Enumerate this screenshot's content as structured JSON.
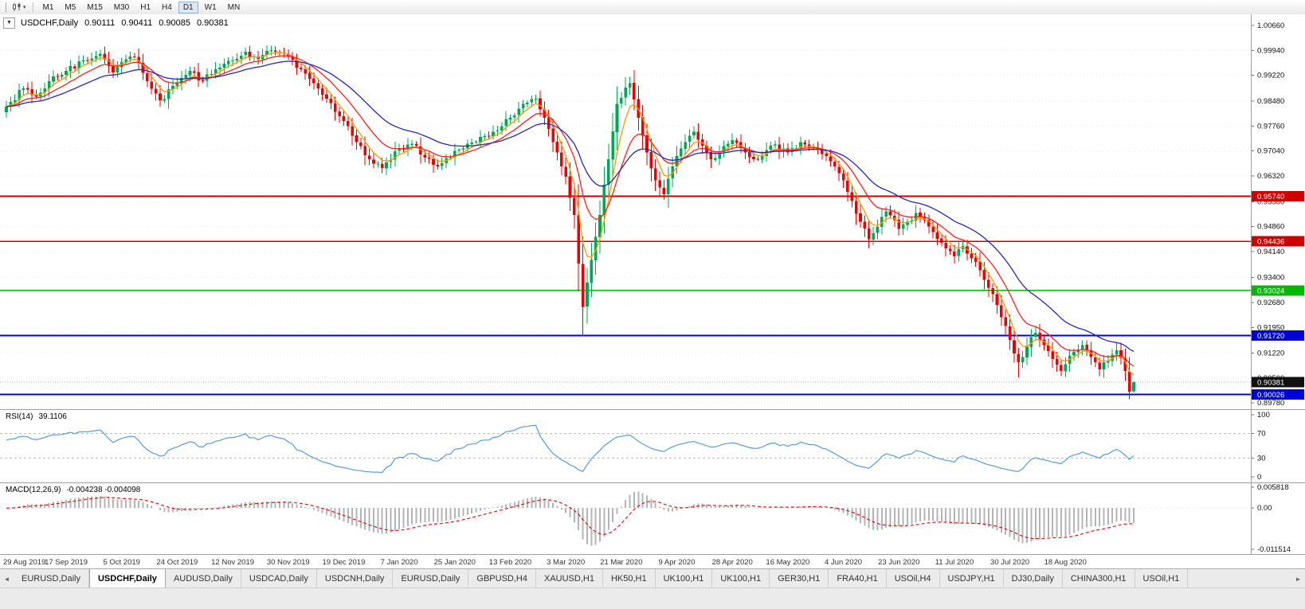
{
  "toolbar": {
    "timeframes": [
      {
        "label": "M1",
        "active": false
      },
      {
        "label": "M5",
        "active": false
      },
      {
        "label": "M15",
        "active": false
      },
      {
        "label": "M30",
        "active": false
      },
      {
        "label": "H1",
        "active": false
      },
      {
        "label": "H4",
        "active": false
      },
      {
        "label": "D1",
        "active": true
      },
      {
        "label": "W1",
        "active": false
      },
      {
        "label": "MN",
        "active": false
      }
    ]
  },
  "chart": {
    "menu_caret": "▼",
    "header": {
      "symbol_period": "USDCHF,Daily",
      "open": "0.90111",
      "high": "0.90411",
      "low": "0.90085",
      "close": "0.90381"
    }
  },
  "price_axis": {
    "labels": [
      "1.00660",
      "0.99940",
      "0.99220",
      "0.98480",
      "0.97760",
      "0.97040",
      "0.96320",
      "0.95580",
      "0.94860",
      "0.94140",
      "0.93400",
      "0.92680",
      "0.91950",
      "0.91220",
      "0.90500",
      "0.89780"
    ]
  },
  "colors": {
    "candle_up": "#00a651",
    "candle_down": "#e60000",
    "rsi_line": "#5b9bd5",
    "macd_hist": "#b4b4b4",
    "macd_signal": "#e60000",
    "axis_text": "#111111",
    "date_text": "#333333",
    "separator": "#a0a0a0",
    "current_price_chip": "#111111"
  },
  "chart_data": {
    "type": "candlestick",
    "symbol": "USDCHF",
    "period": "Daily",
    "ylim": [
      0.896,
      1.0098
    ],
    "n_candles": 265,
    "x_labels": [
      "29 Aug 2019",
      "17 Sep 2019",
      "5 Oct 2019",
      "24 Oct 2019",
      "12 Nov 2019",
      "30 Nov 2019",
      "19 Dec 2019",
      "7 Jan 2020",
      "25 Jan 2020",
      "13 Feb 2020",
      "3 Mar 2020",
      "21 Mar 2020",
      "9 Apr 2020",
      "28 Apr 2020",
      "16 May 2020",
      "4 Jun 2020",
      "23 Jun 2020",
      "11 Jul 2020",
      "30 Jul 2020",
      "18 Aug 2020"
    ],
    "x_label_first_index": 1,
    "x_label_step": 13,
    "close_path": [
      [
        0,
        0.9832
      ],
      [
        4,
        0.9885
      ],
      [
        7,
        0.986
      ],
      [
        10,
        0.9905
      ],
      [
        14,
        0.9935
      ],
      [
        18,
        0.9965
      ],
      [
        22,
        0.9985
      ],
      [
        25,
        0.993
      ],
      [
        27,
        0.996
      ],
      [
        30,
        0.9975
      ],
      [
        33,
        0.9905
      ],
      [
        36,
        0.985
      ],
      [
        40,
        0.99
      ],
      [
        43,
        0.9935
      ],
      [
        46,
        0.9905
      ],
      [
        49,
        0.994
      ],
      [
        53,
        0.9965
      ],
      [
        56,
        0.999
      ],
      [
        59,
        0.997
      ],
      [
        62,
        0.9995
      ],
      [
        66,
        0.9975
      ],
      [
        69,
        0.994
      ],
      [
        72,
        0.99
      ],
      [
        75,
        0.9855
      ],
      [
        79,
        0.979
      ],
      [
        82,
        0.973
      ],
      [
        85,
        0.968
      ],
      [
        88,
        0.9655
      ],
      [
        92,
        0.971
      ],
      [
        95,
        0.9725
      ],
      [
        98,
        0.9685
      ],
      [
        101,
        0.966
      ],
      [
        105,
        0.9705
      ],
      [
        108,
        0.9725
      ],
      [
        111,
        0.9745
      ],
      [
        114,
        0.976
      ],
      [
        118,
        0.98
      ],
      [
        121,
        0.984
      ],
      [
        124,
        0.9855
      ],
      [
        126,
        0.98
      ],
      [
        128,
        0.973
      ],
      [
        130,
        0.966
      ],
      [
        131,
        0.963
      ],
      [
        133,
        0.952
      ],
      [
        135,
        0.9255
      ],
      [
        137,
        0.939
      ],
      [
        139,
        0.952
      ],
      [
        141,
        0.968
      ],
      [
        143,
        0.984
      ],
      [
        146,
        0.99
      ],
      [
        148,
        0.98
      ],
      [
        150,
        0.97
      ],
      [
        152,
        0.962
      ],
      [
        154,
        0.958
      ],
      [
        156,
        0.966
      ],
      [
        157,
        0.969
      ],
      [
        159,
        0.973
      ],
      [
        161,
        0.976
      ],
      [
        163,
        0.972
      ],
      [
        165,
        0.968
      ],
      [
        167,
        0.97
      ],
      [
        170,
        0.9735
      ],
      [
        173,
        0.97
      ],
      [
        176,
        0.968
      ],
      [
        179,
        0.972
      ],
      [
        183,
        0.97
      ],
      [
        186,
        0.973
      ],
      [
        189,
        0.9715
      ],
      [
        192,
        0.969
      ],
      [
        194,
        0.966
      ],
      [
        196,
        0.962
      ],
      [
        198,
        0.956
      ],
      [
        200,
        0.95
      ],
      [
        202,
        0.945
      ],
      [
        204,
        0.9485
      ],
      [
        206,
        0.953
      ],
      [
        208,
        0.9505
      ],
      [
        209,
        0.948
      ],
      [
        211,
        0.95
      ],
      [
        213,
        0.9525
      ],
      [
        215,
        0.9505
      ],
      [
        217,
        0.947
      ],
      [
        219,
        0.944
      ],
      [
        221,
        0.9415
      ],
      [
        222,
        0.94
      ],
      [
        224,
        0.943
      ],
      [
        226,
        0.9395
      ],
      [
        228,
        0.936
      ],
      [
        230,
        0.931
      ],
      [
        232,
        0.926
      ],
      [
        234,
        0.92
      ],
      [
        235,
        0.916
      ],
      [
        237,
        0.9095
      ],
      [
        239,
        0.914
      ],
      [
        241,
        0.918
      ],
      [
        243,
        0.9145
      ],
      [
        245,
        0.9105
      ],
      [
        247,
        0.907
      ],
      [
        248,
        0.909
      ],
      [
        250,
        0.9125
      ],
      [
        252,
        0.9145
      ],
      [
        254,
        0.911
      ],
      [
        256,
        0.9075
      ],
      [
        258,
        0.91
      ],
      [
        260,
        0.913
      ],
      [
        262,
        0.907
      ],
      [
        263,
        0.9011
      ],
      [
        264,
        0.90381
      ]
    ],
    "wick_overrides": [
      [
        135,
        "low",
        0.917
      ],
      [
        146,
        "high",
        0.9918
      ],
      [
        202,
        "low",
        0.9424
      ],
      [
        237,
        "low",
        0.9052
      ],
      [
        263,
        "low",
        0.8989
      ]
    ],
    "last_candle": {
      "open": 0.90111,
      "high": 0.90411,
      "low": 0.90085,
      "close": 0.90381
    },
    "moving_averages": [
      {
        "name": "fast",
        "period": 5,
        "color": "#ff9900"
      },
      {
        "name": "medium",
        "period": 12,
        "color": "#ff2222"
      },
      {
        "name": "slow",
        "period": 26,
        "color": "#2828b8"
      }
    ],
    "levels": [
      {
        "price": 0.9574,
        "label": "0.95740",
        "color": "#cc0000"
      },
      {
        "price": 0.94436,
        "label": "0.94436",
        "color": "#cc0000"
      },
      {
        "price": 0.93024,
        "label": "0.93024",
        "color": "#00b800"
      },
      {
        "price": 0.9172,
        "label": "0.91720",
        "color": "#0000d8"
      },
      {
        "price": 0.90026,
        "label": "0.90026",
        "color": "#0000d8"
      }
    ],
    "current_price": {
      "value": 0.90381,
      "label": "0.90381"
    },
    "rsi": {
      "label": "RSI(14)",
      "display_value": "39.1106",
      "period": 14,
      "levels": [
        70,
        30
      ],
      "axis_labels": [
        "100",
        "70",
        "30",
        "0"
      ]
    },
    "macd": {
      "label": "MACD(12,26,9)",
      "display_values": "-0.004238 -0.004098",
      "fast": 12,
      "slow": 26,
      "signal": 9,
      "axis_labels": [
        "0.005818",
        "0.00",
        "-0.011514"
      ],
      "axis_values": [
        0.005818,
        0.0,
        -0.011514
      ]
    }
  },
  "tabbar": {
    "left_arrow": "◄",
    "right_arrow": "►",
    "tabs": [
      {
        "label": "EURUSD,Daily",
        "active": false
      },
      {
        "label": "USDCHF,Daily",
        "active": true
      },
      {
        "label": "AUDUSD,Daily",
        "active": false
      },
      {
        "label": "USDCAD,Daily",
        "active": false
      },
      {
        "label": "USDCNH,Daily",
        "active": false
      },
      {
        "label": "EURUSD,Daily",
        "active": false
      },
      {
        "label": "GBPUSD,H4",
        "active": false
      },
      {
        "label": "XAUUSD,H1",
        "active": false
      },
      {
        "label": "HK50,H1",
        "active": false
      },
      {
        "label": "UK100,H1",
        "active": false
      },
      {
        "label": "UK100,H1",
        "active": false
      },
      {
        "label": "GER30,H1",
        "active": false
      },
      {
        "label": "FRA40,H1",
        "active": false
      },
      {
        "label": "USOil,H4",
        "active": false
      },
      {
        "label": "USDJPY,H1",
        "active": false
      },
      {
        "label": "DJ30,Daily",
        "active": false
      },
      {
        "label": "CHINA300,H1",
        "active": false
      },
      {
        "label": "USOil,H1",
        "active": false
      }
    ]
  }
}
